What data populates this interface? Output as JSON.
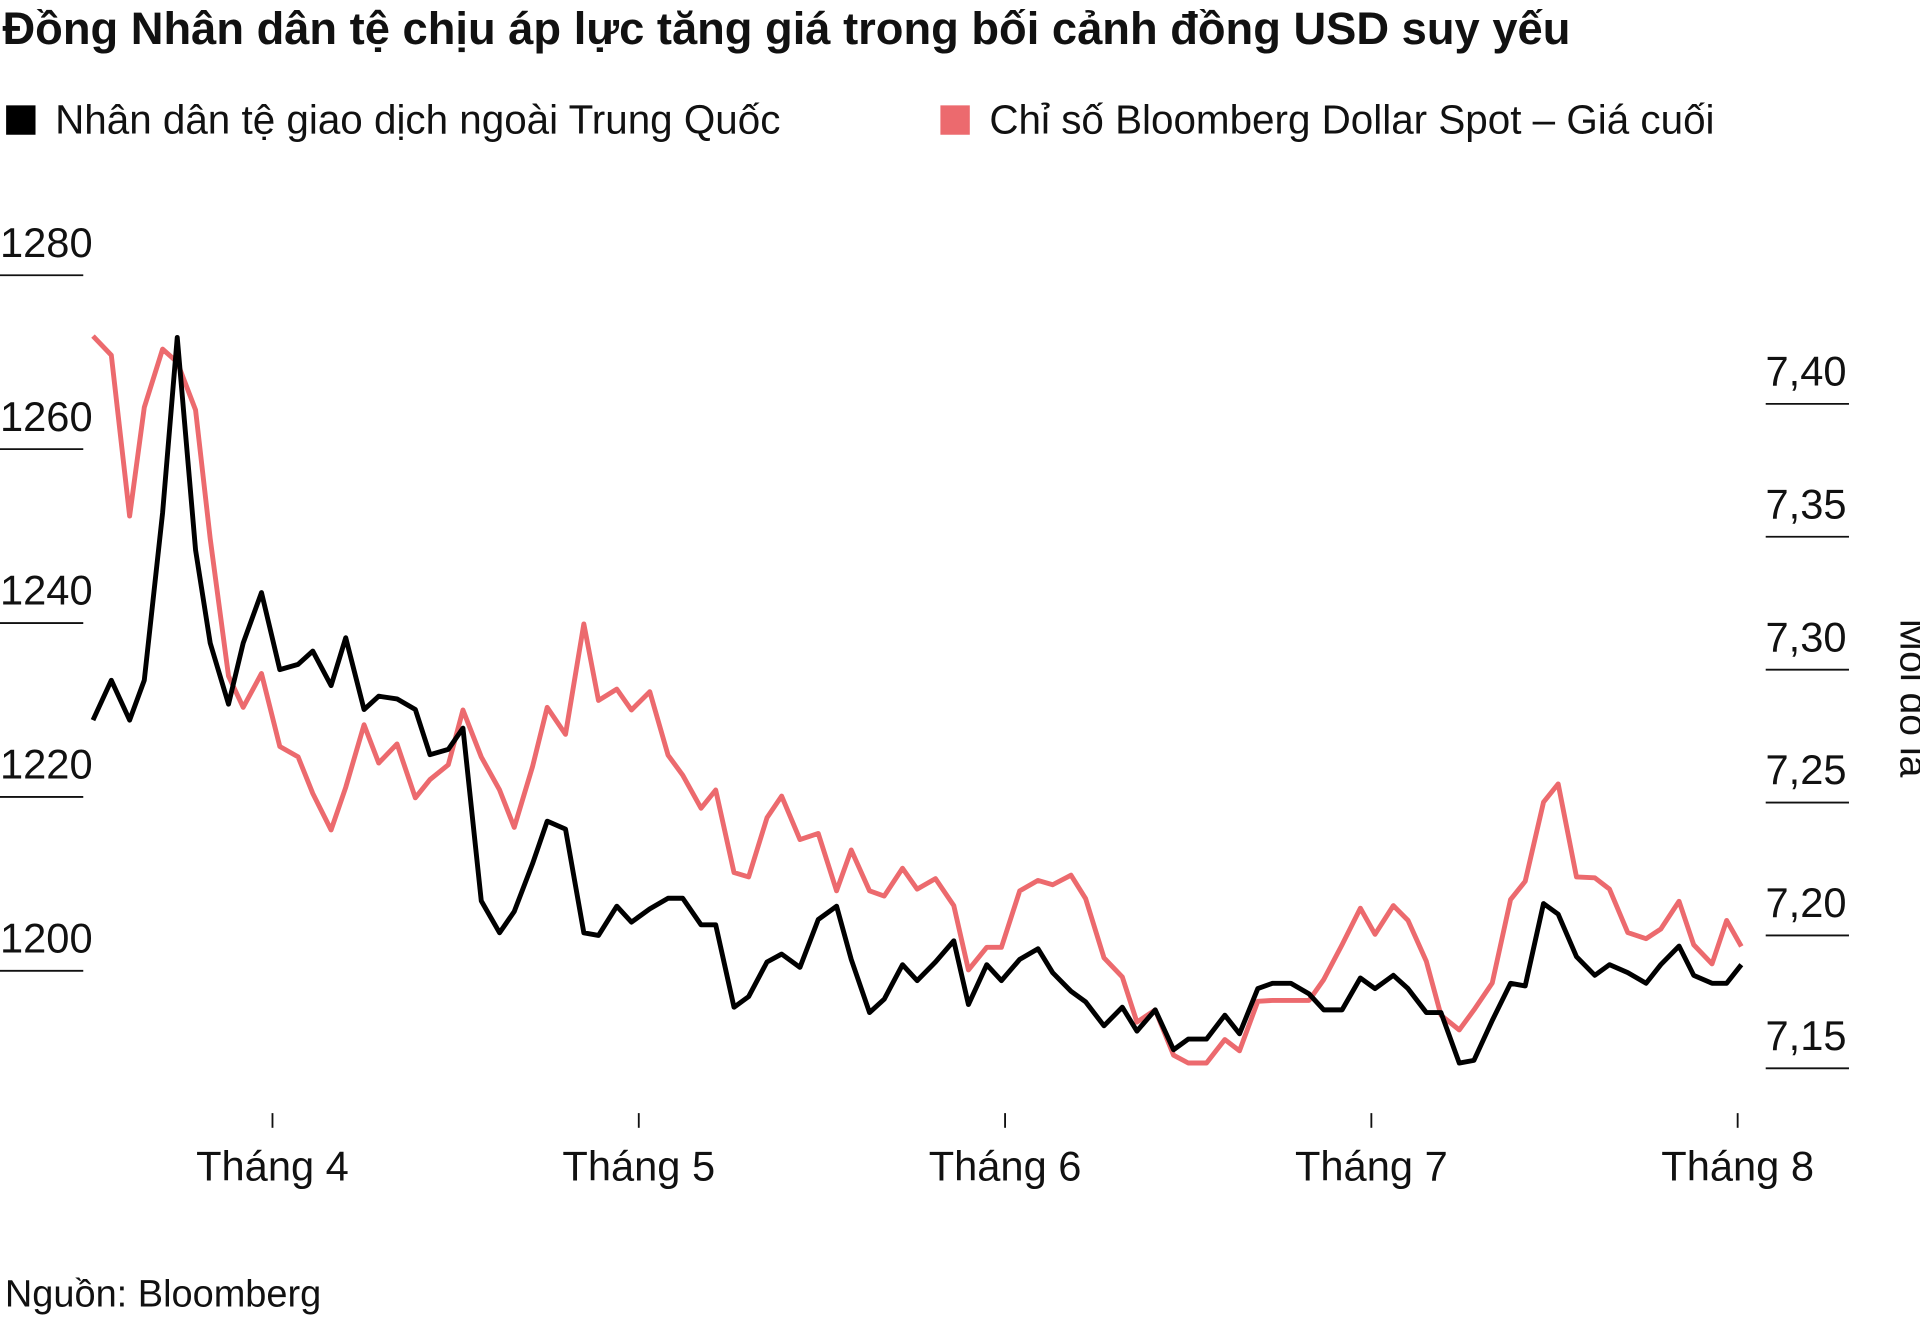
{
  "chart_data": {
    "type": "line",
    "title": "Đồng Nhân dân tệ chịu áp lực tăng giá trong bối cảnh đồng USD suy yếu",
    "y2label": "Mỗi đô la",
    "source": "Nguồn: Bloomberg",
    "x": [
      3.51,
      3.56,
      3.61,
      3.65,
      3.7,
      3.74,
      3.79,
      3.83,
      3.88,
      3.92,
      3.97,
      4.02,
      4.07,
      4.11,
      4.16,
      4.2,
      4.25,
      4.29,
      4.34,
      4.39,
      4.43,
      4.48,
      4.52,
      4.57,
      4.62,
      4.66,
      4.71,
      4.75,
      4.8,
      4.85,
      4.89,
      4.94,
      4.98,
      5.03,
      5.08,
      5.12,
      5.17,
      5.21,
      5.26,
      5.3,
      5.35,
      5.39,
      5.44,
      5.49,
      5.54,
      5.58,
      5.63,
      5.67,
      5.72,
      5.76,
      5.81,
      5.86,
      5.9,
      5.95,
      5.99,
      6.04,
      6.09,
      6.13,
      6.18,
      6.22,
      6.27,
      6.32,
      6.36,
      6.41,
      6.46,
      6.5,
      6.55,
      6.6,
      6.64,
      6.69,
      6.73,
      6.78,
      6.83,
      6.87,
      6.92,
      6.97,
      7.01,
      7.06,
      7.1,
      7.15,
      7.19,
      7.24,
      7.28,
      7.33,
      7.38,
      7.42,
      7.47,
      7.51,
      7.56,
      7.61,
      7.65,
      7.7,
      7.75,
      7.79,
      7.84,
      7.88,
      7.93,
      7.97,
      8.01
    ],
    "series": [
      {
        "name": "Nhân dân tệ giao dịch ngoài Trung Quốc",
        "color": "#000000",
        "axis": "y2",
        "values": [
          7.281,
          7.296,
          7.281,
          7.296,
          7.359,
          7.425,
          7.345,
          7.31,
          7.287,
          7.31,
          7.329,
          7.3,
          7.302,
          7.307,
          7.294,
          7.312,
          7.285,
          7.29,
          7.289,
          7.285,
          7.268,
          7.27,
          7.278,
          7.213,
          7.201,
          7.209,
          7.227,
          7.243,
          7.24,
          7.201,
          7.2,
          7.211,
          7.205,
          7.21,
          7.214,
          7.214,
          7.204,
          7.204,
          7.173,
          7.177,
          7.19,
          7.193,
          7.188,
          7.206,
          7.211,
          7.191,
          7.171,
          7.176,
          7.189,
          7.183,
          7.19,
          7.198,
          7.174,
          7.189,
          7.183,
          7.191,
          7.195,
          7.186,
          7.179,
          7.175,
          7.166,
          7.173,
          7.164,
          7.172,
          7.157,
          7.161,
          7.161,
          7.17,
          7.163,
          7.18,
          7.182,
          7.182,
          7.178,
          7.172,
          7.172,
          7.184,
          7.18,
          7.185,
          7.18,
          7.171,
          7.171,
          7.152,
          7.153,
          7.168,
          7.182,
          7.181,
          7.212,
          7.208,
          7.192,
          7.185,
          7.189,
          7.186,
          7.182,
          7.189,
          7.196,
          7.185,
          7.182,
          7.182,
          7.189
        ]
      },
      {
        "name": "Chỉ số Bloomberg Dollar Spot – Giá cuối",
        "color": "#ec6a6e",
        "axis": "y",
        "values": [
          1273.0,
          1270.8,
          1252.3,
          1264.8,
          1271.5,
          1270.0,
          1264.5,
          1249.7,
          1233.9,
          1230.3,
          1234.2,
          1225.8,
          1224.6,
          1220.4,
          1216.2,
          1221.1,
          1228.3,
          1223.9,
          1226.1,
          1219.9,
          1222.0,
          1223.7,
          1230.0,
          1224.6,
          1220.8,
          1216.5,
          1223.5,
          1230.3,
          1227.2,
          1239.9,
          1231.1,
          1232.4,
          1230.0,
          1232.1,
          1224.8,
          1222.5,
          1218.7,
          1220.8,
          1211.3,
          1210.8,
          1217.6,
          1220.1,
          1215.1,
          1215.8,
          1209.2,
          1213.9,
          1209.2,
          1208.6,
          1211.8,
          1209.4,
          1210.6,
          1207.5,
          1200.1,
          1202.7,
          1202.7,
          1209.2,
          1210.4,
          1209.9,
          1211.0,
          1208.3,
          1201.5,
          1199.3,
          1194.1,
          1195.5,
          1190.3,
          1189.4,
          1189.4,
          1192.1,
          1190.8,
          1196.5,
          1196.6,
          1196.6,
          1196.6,
          1199.0,
          1203.0,
          1207.2,
          1204.2,
          1207.5,
          1205.8,
          1201.1,
          1194.9,
          1193.2,
          1195.5,
          1198.6,
          1208.2,
          1210.3,
          1219.4,
          1221.5,
          1210.8,
          1210.7,
          1209.4,
          1204.4,
          1203.7,
          1204.8,
          1208.0,
          1203.0,
          1200.8,
          1205.8,
          1202.8
        ]
      }
    ],
    "xlim": [
      3.45,
      8.1
    ],
    "xticks": [
      {
        "value": 4,
        "label": "Tháng 4"
      },
      {
        "value": 5,
        "label": "Tháng 5"
      },
      {
        "value": 6,
        "label": "Tháng 6"
      },
      {
        "value": 7,
        "label": "Tháng 7"
      },
      {
        "value": 8,
        "label": "Tháng 8"
      }
    ],
    "ylim": [
      1184.2,
      1286.3
    ],
    "yticks": [
      1200,
      1220,
      1240,
      1260,
      1280
    ],
    "y2lim": [
      7.135,
      7.469
    ],
    "y2ticks": [
      {
        "value": 7.15,
        "label": "7,15"
      },
      {
        "value": 7.2,
        "label": "7,20"
      },
      {
        "value": 7.25,
        "label": "7,25"
      },
      {
        "value": 7.3,
        "label": "7,30"
      },
      {
        "value": 7.35,
        "label": "7,35"
      },
      {
        "value": 7.4,
        "label": "7,40"
      }
    ]
  }
}
